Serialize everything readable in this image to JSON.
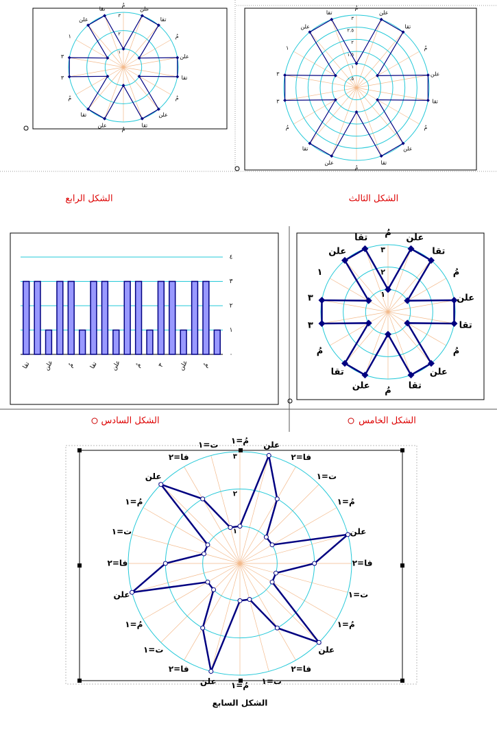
{
  "chart_data": [
    {
      "type": "radar",
      "caption": "الشكل الرابع",
      "color": "#000080",
      "marker": "diamond",
      "categories": [
        "مُ",
        "علن",
        "تقا",
        "مُ",
        "علن",
        "تقا",
        "مُ",
        "علن",
        "تقا",
        "مُ",
        "علن",
        "تقا",
        "مُ",
        "٣",
        "٣",
        "١",
        "علن",
        "تقا"
      ],
      "values": [
        1,
        3,
        3,
        1,
        3,
        3,
        1,
        3,
        3,
        1,
        3,
        3,
        1,
        3,
        3,
        1,
        3,
        3
      ],
      "rlim": [
        0,
        3
      ],
      "rticks": [
        {
          "value": 1,
          "label": "١"
        },
        {
          "value": 2,
          "label": "٢"
        },
        {
          "value": 3,
          "label": "٣"
        }
      ]
    },
    {
      "type": "radar",
      "caption": "الشكل الثالث",
      "color": "#000080",
      "marker": "diamond",
      "categories": [
        "مُ",
        "علن",
        "تقا",
        "مُ",
        "علن",
        "تقا",
        "مُ",
        "علن",
        "تقا",
        "مُ",
        "علن",
        "تقا",
        "مُ",
        "٣",
        "٣",
        "١",
        "علن",
        "تقا"
      ],
      "values": [
        1,
        3,
        3,
        1,
        3,
        3,
        1,
        3,
        3,
        1,
        3,
        3,
        1,
        3,
        3,
        1,
        3,
        3
      ],
      "rlim": [
        0,
        3
      ],
      "rticks": [
        {
          "value": 0.5,
          "label": "٠.٥"
        },
        {
          "value": 1,
          "label": "١"
        },
        {
          "value": 1.5,
          "label": "١.٥"
        },
        {
          "value": 2,
          "label": "٢"
        },
        {
          "value": 2.5,
          "label": "٢.٥"
        },
        {
          "value": 3,
          "label": "٣"
        }
      ]
    },
    {
      "type": "radar",
      "caption": "الشكل الخامس",
      "color": "#000080",
      "marker": "diamond",
      "categories": [
        "مُ",
        "علن",
        "تقا",
        "مُ",
        "علن",
        "تقا",
        "مُ",
        "علن",
        "تقا",
        "مُ",
        "علن",
        "تقا",
        "مُ",
        "٣",
        "٣",
        "١",
        "علن",
        "تقا"
      ],
      "values": [
        1,
        3,
        3,
        1,
        3,
        3,
        1,
        3,
        3,
        1,
        3,
        3,
        1,
        3,
        3,
        1,
        3,
        3
      ],
      "rlim": [
        0,
        3
      ],
      "rticks": [
        {
          "value": 1,
          "label": "١"
        },
        {
          "value": 2,
          "label": "٢"
        },
        {
          "value": 3,
          "label": "٣"
        }
      ]
    },
    {
      "type": "bar",
      "caption": "الشكل السادس",
      "color": "#9999ff",
      "categories": [
        "تقا",
        null,
        "علن",
        null,
        "مُ",
        null,
        "تقا",
        null,
        "علن",
        null,
        "مُ",
        null,
        "٣",
        null,
        "علن",
        null,
        "مُ",
        null
      ],
      "values": [
        3,
        3,
        1,
        3,
        3,
        1,
        3,
        3,
        1,
        3,
        3,
        1,
        3,
        3,
        1,
        3,
        3,
        1
      ],
      "ylim": [
        0,
        4
      ],
      "yticks": [
        {
          "value": 0,
          "label": "٠"
        },
        {
          "value": 1,
          "label": "١"
        },
        {
          "value": 2,
          "label": "٢"
        },
        {
          "value": 3,
          "label": "٣"
        },
        {
          "value": 4,
          "label": "٤"
        }
      ],
      "grid": true
    },
    {
      "type": "radar",
      "caption": "الشكل السابع",
      "color": "#000080",
      "marker": "circle",
      "categories": [
        "مُ=١",
        "علن",
        "فا=٢",
        "ت=١",
        "مُ=١",
        "علن",
        "فا=٢",
        "ت=١",
        "مُ=١",
        "علن",
        "فا=٢",
        "ت=١",
        "مُ=١",
        "علن",
        "فا=٢",
        "ت=١",
        "مُ=١",
        "علن",
        "فا=٢",
        "ت=١",
        "مُ=١",
        "علن",
        "فا=٢",
        "ت=١"
      ],
      "values": [
        1,
        3,
        2,
        1,
        1,
        3,
        2,
        1,
        1,
        3,
        2,
        1,
        1,
        3,
        2,
        1,
        1,
        3,
        2,
        1,
        1,
        3,
        2,
        1
      ],
      "rlim": [
        0,
        3
      ],
      "rticks": [
        {
          "value": 1,
          "label": "١"
        },
        {
          "value": 2,
          "label": "٢"
        },
        {
          "value": 3,
          "label": "٣"
        }
      ]
    }
  ]
}
